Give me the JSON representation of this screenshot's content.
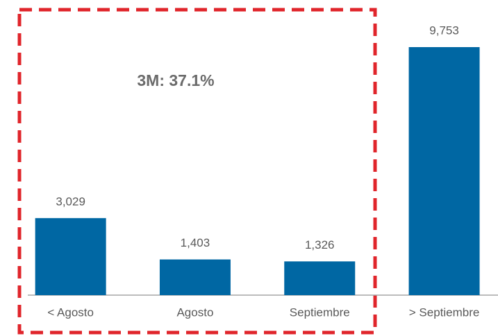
{
  "chart_data": {
    "type": "bar",
    "categories": [
      "< Agosto",
      "Agosto",
      "Septiembre",
      "> Septiembre"
    ],
    "values": [
      3029,
      1403,
      1326,
      9753
    ],
    "value_labels": [
      "3,029",
      "1,403",
      "1,326",
      "9,753"
    ],
    "color": "#0067a3",
    "annotation": "3M: 37.1%"
  }
}
